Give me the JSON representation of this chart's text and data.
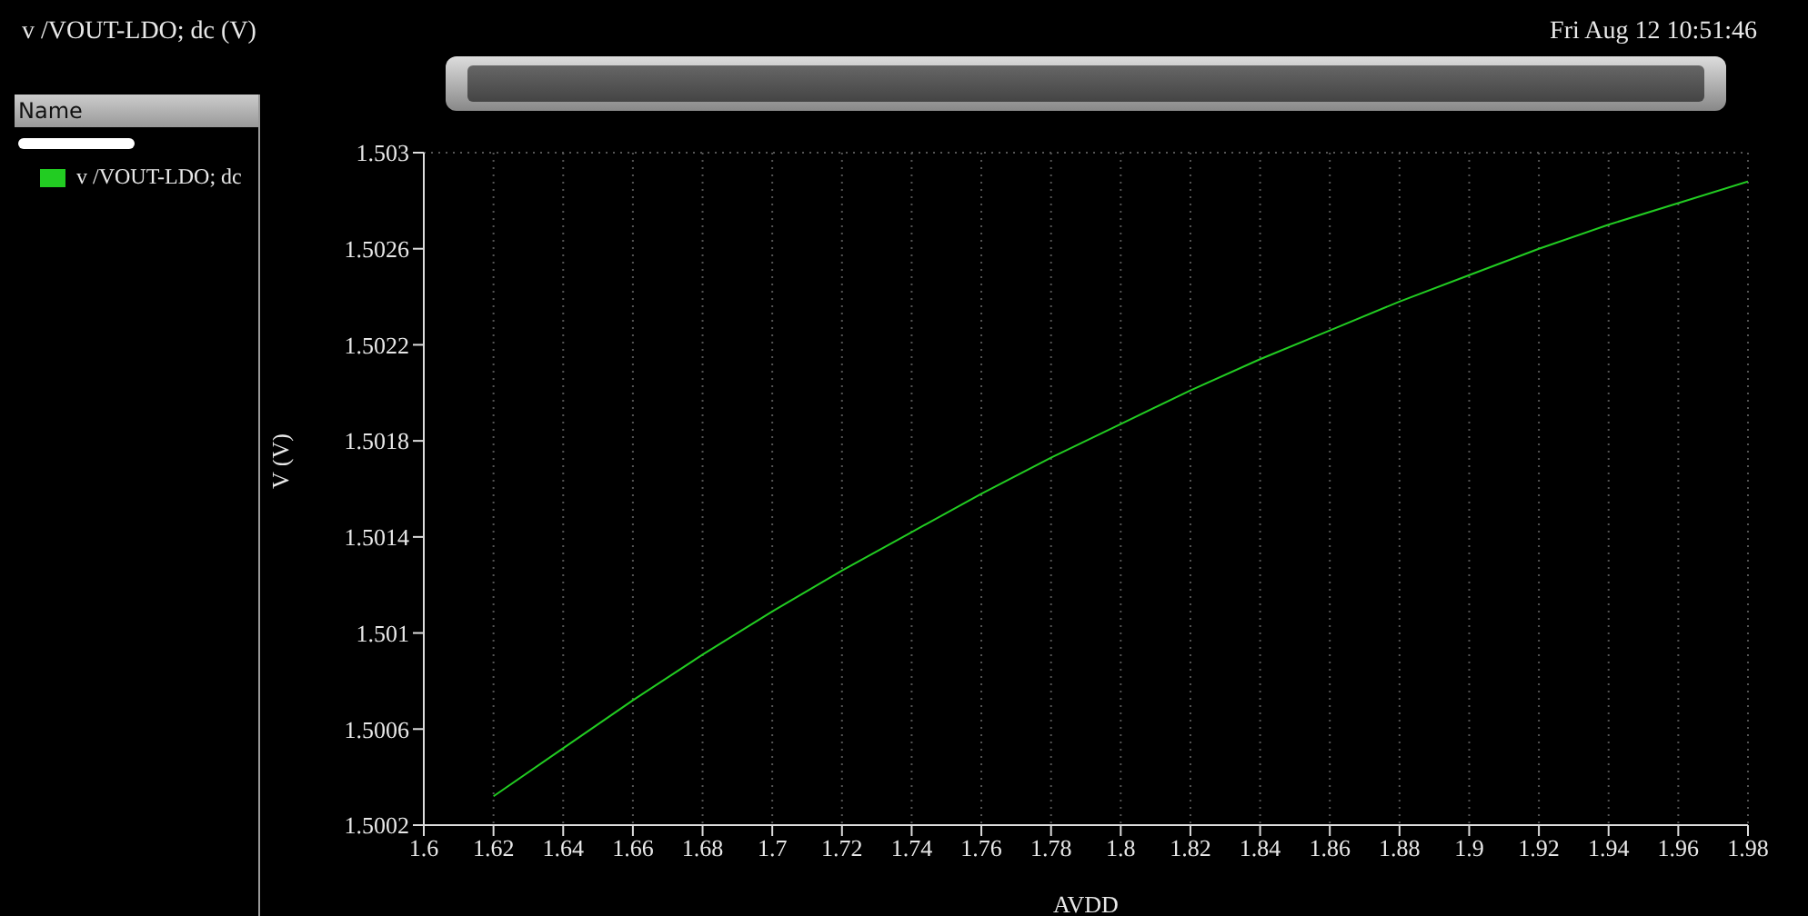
{
  "chart_data": {
    "type": "line",
    "title": "v /VOUT-LDO; dc (V)",
    "xlabel": "AVDD",
    "ylabel": "V (V)",
    "legend_title": "Name",
    "annotations": [
      "Fri Aug 12 10:51:46"
    ],
    "x": [
      1.62,
      1.64,
      1.66,
      1.68,
      1.7,
      1.72,
      1.74,
      1.76,
      1.78,
      1.8,
      1.82,
      1.84,
      1.86,
      1.88,
      1.9,
      1.92,
      1.94,
      1.96,
      1.98
    ],
    "series": [
      {
        "name": "v /VOUT-LDO; dc",
        "color": "#22cc22",
        "values": [
          1.50032,
          1.50052,
          1.50072,
          1.50091,
          1.50109,
          1.50126,
          1.50142,
          1.50158,
          1.50173,
          1.50187,
          1.50201,
          1.50214,
          1.50226,
          1.50238,
          1.50249,
          1.5026,
          1.5027,
          1.50279,
          1.50288
        ]
      }
    ],
    "xlim": [
      1.6,
      1.98
    ],
    "xticks": [
      1.6,
      1.62,
      1.64,
      1.66,
      1.68,
      1.7,
      1.72,
      1.74,
      1.76,
      1.78,
      1.8,
      1.82,
      1.84,
      1.86,
      1.88,
      1.9,
      1.92,
      1.94,
      1.96,
      1.98
    ],
    "ylim": [
      1.5002,
      1.503
    ],
    "yticks": [
      1.5002,
      1.5006,
      1.501,
      1.5014,
      1.5018,
      1.5022,
      1.5026,
      1.503
    ],
    "grid": true,
    "legend": "left",
    "marker": "none",
    "line_style": "solid"
  }
}
